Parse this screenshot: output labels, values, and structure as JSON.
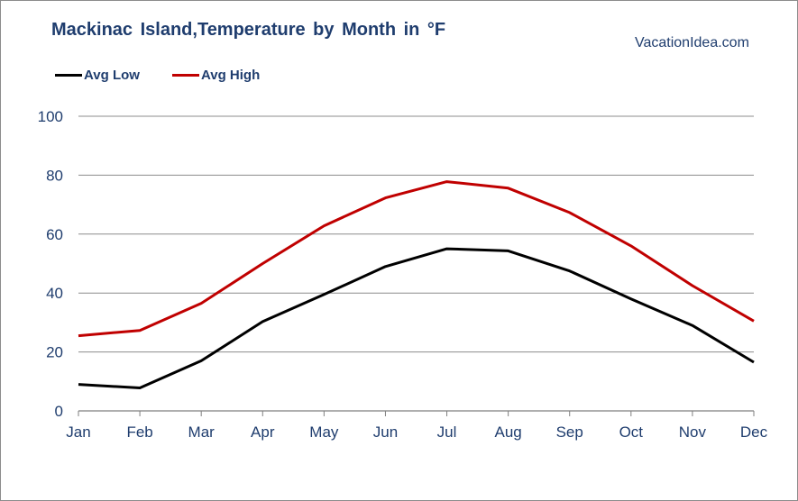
{
  "chart_data": {
    "type": "line",
    "title": "Mackinac Island,Temperature by Month in °F",
    "watermark": "VacationIdea.com",
    "categories": [
      "Jan",
      "Feb",
      "Mar",
      "Apr",
      "May",
      "Jun",
      "Jul",
      "Aug",
      "Sep",
      "Oct",
      "Nov",
      "Dec"
    ],
    "series": [
      {
        "name": "Avg Low",
        "color": "#000000",
        "values": [
          9,
          7.8,
          17,
          30.3,
          39.5,
          49,
          55,
          54.3,
          47.5,
          38,
          29,
          16.5
        ]
      },
      {
        "name": "Avg High",
        "color": "#c00000",
        "values": [
          25.5,
          27.3,
          36.5,
          50,
          62.8,
          72.3,
          77.8,
          75.6,
          67.3,
          56,
          42.5,
          30.5
        ]
      }
    ],
    "ylim": [
      0,
      100
    ],
    "yticks": [
      0,
      20,
      40,
      60,
      80,
      100
    ],
    "grid": true,
    "legend_position": "top-left"
  }
}
